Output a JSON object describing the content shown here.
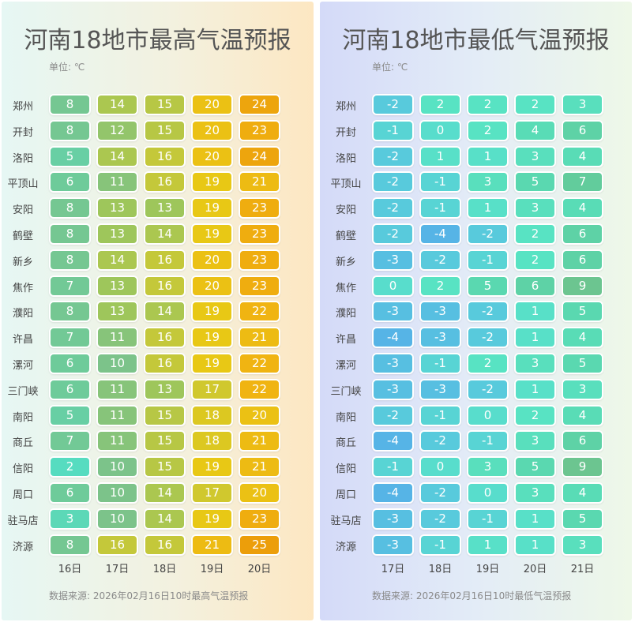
{
  "chart_data": [
    {
      "type": "heatmap",
      "title": "河南18地市最高气温预报",
      "unit_label": "单位: ℃",
      "source": "数据来源: 2026年02月16日10时最高气温预报",
      "rows": [
        "郑州",
        "开封",
        "洛阳",
        "平顶山",
        "安阳",
        "鹤壁",
        "新乡",
        "焦作",
        "濮阳",
        "许昌",
        "漯河",
        "三门峡",
        "南阳",
        "商丘",
        "信阳",
        "周口",
        "驻马店",
        "济源"
      ],
      "columns": [
        "16日",
        "17日",
        "18日",
        "19日",
        "20日"
      ],
      "values": [
        [
          8,
          14,
          15,
          20,
          24
        ],
        [
          8,
          12,
          15,
          20,
          23
        ],
        [
          5,
          14,
          16,
          20,
          24
        ],
        [
          6,
          11,
          16,
          19,
          21
        ],
        [
          8,
          13,
          13,
          19,
          23
        ],
        [
          8,
          13,
          14,
          19,
          23
        ],
        [
          8,
          14,
          16,
          20,
          23
        ],
        [
          7,
          13,
          16,
          20,
          23
        ],
        [
          8,
          13,
          14,
          19,
          22
        ],
        [
          7,
          11,
          16,
          19,
          21
        ],
        [
          6,
          10,
          16,
          19,
          22
        ],
        [
          6,
          11,
          13,
          17,
          22
        ],
        [
          5,
          11,
          15,
          18,
          20
        ],
        [
          7,
          11,
          15,
          18,
          21
        ],
        [
          2,
          10,
          15,
          19,
          21
        ],
        [
          6,
          10,
          14,
          17,
          20
        ],
        [
          3,
          10,
          14,
          19,
          23
        ],
        [
          8,
          16,
          16,
          21,
          25
        ]
      ]
    },
    {
      "type": "heatmap",
      "title": "河南18地市最低气温预报",
      "unit_label": "单位: ℃",
      "source": "数据来源: 2026年02月16日10时最低气温预报",
      "rows": [
        "郑州",
        "开封",
        "洛阳",
        "平顶山",
        "安阳",
        "鹤壁",
        "新乡",
        "焦作",
        "濮阳",
        "许昌",
        "漯河",
        "三门峡",
        "南阳",
        "商丘",
        "信阳",
        "周口",
        "驻马店",
        "济源"
      ],
      "columns": [
        "17日",
        "18日",
        "19日",
        "20日",
        "21日"
      ],
      "values": [
        [
          -2,
          2,
          2,
          2,
          3
        ],
        [
          -1,
          0,
          2,
          4,
          6
        ],
        [
          -2,
          1,
          1,
          3,
          4
        ],
        [
          -2,
          -1,
          3,
          5,
          7
        ],
        [
          -2,
          -1,
          1,
          3,
          4
        ],
        [
          -2,
          -4,
          -2,
          2,
          6
        ],
        [
          -3,
          -2,
          -1,
          2,
          6
        ],
        [
          0,
          2,
          5,
          6,
          9
        ],
        [
          -3,
          -3,
          -2,
          1,
          5
        ],
        [
          -4,
          -3,
          -2,
          1,
          4
        ],
        [
          -3,
          -1,
          2,
          3,
          5
        ],
        [
          -3,
          -3,
          -2,
          1,
          3
        ],
        [
          -2,
          -1,
          0,
          2,
          4
        ],
        [
          -4,
          -2,
          -1,
          3,
          6
        ],
        [
          -1,
          0,
          3,
          5,
          9
        ],
        [
          -4,
          -2,
          0,
          3,
          4
        ],
        [
          -3,
          -2,
          -1,
          1,
          5
        ],
        [
          -3,
          -1,
          1,
          1,
          3
        ]
      ]
    }
  ]
}
